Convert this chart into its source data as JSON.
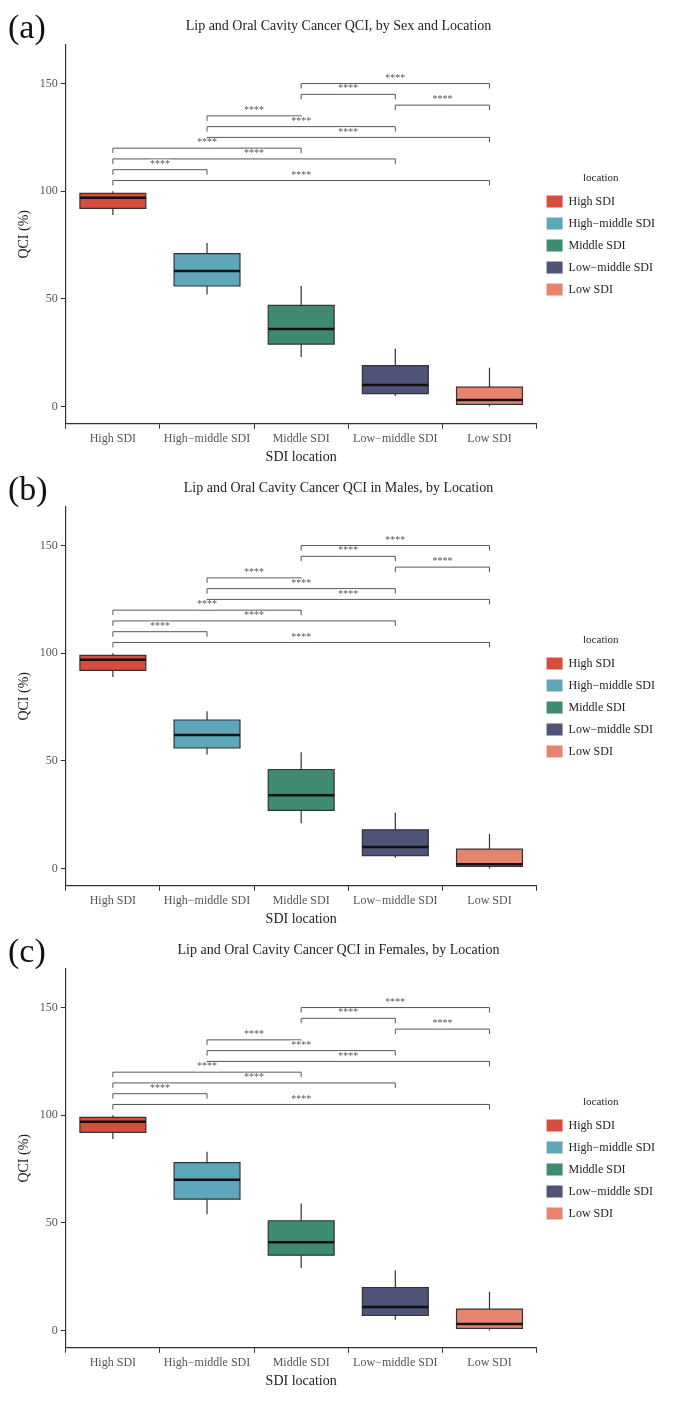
{
  "chart_data": [
    {
      "type": "box",
      "title": "Lip and Oral Cavity Cancer QCI, by Sex and Location",
      "xlabel": "SDI location",
      "ylabel": "QCI (%)",
      "legend_title": "location",
      "categories": [
        "High SDI",
        "High−middle SDI",
        "Middle SDI",
        "Low−middle SDI",
        "Low SDI"
      ],
      "series": [
        {
          "name": "High SDI",
          "color": "#d94b3a",
          "boxes": [
            {
              "low": 89,
              "q1": 92,
              "median": 97,
              "q3": 99,
              "high": 100
            },
            null,
            null,
            null,
            null
          ]
        },
        {
          "name": "High−middle SDI",
          "color": "#5ea7ba",
          "boxes": [
            null,
            {
              "low": 52,
              "q1": 56,
              "median": 63,
              "q3": 71,
              "high": 76
            },
            null,
            null,
            null
          ]
        },
        {
          "name": "Middle SDI",
          "color": "#3f8a72",
          "boxes": [
            null,
            null,
            {
              "low": 23,
              "q1": 29,
              "median": 36,
              "q3": 47,
              "high": 56
            },
            null,
            null
          ]
        },
        {
          "name": "Low−middle SDI",
          "color": "#4f5377",
          "boxes": [
            null,
            null,
            null,
            {
              "low": 5,
              "q1": 6,
              "median": 10,
              "q3": 19,
              "high": 27
            },
            null
          ]
        },
        {
          "name": "Low SDI",
          "color": "#e8846e",
          "boxes": [
            null,
            null,
            null,
            null,
            {
              "low": 0,
              "q1": 1,
              "median": 3,
              "q3": 9,
              "high": 18
            }
          ]
        }
      ],
      "ylim": [
        -8,
        168
      ],
      "yticks": [
        0,
        50,
        100,
        150
      ],
      "grid": false,
      "legend": "right",
      "annotations": [
        "(a)",
        "****",
        "****",
        "****",
        "****",
        "****",
        "****",
        "****",
        "****",
        "****",
        "****"
      ]
    },
    {
      "type": "box",
      "title": "Lip and Oral Cavity Cancer QCI in Males, by Location",
      "xlabel": "SDI location",
      "ylabel": "QCI (%)",
      "legend_title": "location",
      "categories": [
        "High SDI",
        "High−middle SDI",
        "Middle SDI",
        "Low−middle SDI",
        "Low SDI"
      ],
      "series": [
        {
          "name": "High SDI",
          "color": "#d94b3a",
          "boxes": [
            {
              "low": 89,
              "q1": 92,
              "median": 97,
              "q3": 99,
              "high": 100
            },
            null,
            null,
            null,
            null
          ]
        },
        {
          "name": "High−middle SDI",
          "color": "#5ea7ba",
          "boxes": [
            null,
            {
              "low": 53,
              "q1": 56,
              "median": 62,
              "q3": 69,
              "high": 73
            },
            null,
            null,
            null
          ]
        },
        {
          "name": "Middle SDI",
          "color": "#3f8a72",
          "boxes": [
            null,
            null,
            {
              "low": 21,
              "q1": 27,
              "median": 34,
              "q3": 46,
              "high": 54
            },
            null,
            null
          ]
        },
        {
          "name": "Low−middle SDI",
          "color": "#4f5377",
          "boxes": [
            null,
            null,
            null,
            {
              "low": 5,
              "q1": 6,
              "median": 10,
              "q3": 18,
              "high": 26
            },
            null
          ]
        },
        {
          "name": "Low SDI",
          "color": "#e8846e",
          "boxes": [
            null,
            null,
            null,
            null,
            {
              "low": 0,
              "q1": 1,
              "median": 2,
              "q3": 9,
              "high": 16
            }
          ]
        }
      ],
      "ylim": [
        -8,
        168
      ],
      "yticks": [
        0,
        50,
        100,
        150
      ],
      "grid": false,
      "legend": "right",
      "annotations": [
        "(b)",
        "****",
        "****",
        "****",
        "****",
        "****",
        "****",
        "****",
        "****",
        "****",
        "****"
      ]
    },
    {
      "type": "box",
      "title": "Lip and Oral Cavity Cancer QCI in Females, by Location",
      "xlabel": "SDI location",
      "ylabel": "QCI (%)",
      "legend_title": "location",
      "categories": [
        "High SDI",
        "High−middle SDI",
        "Middle SDI",
        "Low−middle SDI",
        "Low SDI"
      ],
      "series": [
        {
          "name": "High SDI",
          "color": "#d94b3a",
          "boxes": [
            {
              "low": 89,
              "q1": 92,
              "median": 97,
              "q3": 99,
              "high": 100
            },
            null,
            null,
            null,
            null
          ]
        },
        {
          "name": "High−middle SDI",
          "color": "#5ea7ba",
          "boxes": [
            null,
            {
              "low": 54,
              "q1": 61,
              "median": 70,
              "q3": 78,
              "high": 83
            },
            null,
            null,
            null
          ]
        },
        {
          "name": "Middle SDI",
          "color": "#3f8a72",
          "boxes": [
            null,
            null,
            {
              "low": 29,
              "q1": 35,
              "median": 41,
              "q3": 51,
              "high": 59
            },
            null,
            null
          ]
        },
        {
          "name": "Low−middle SDI",
          "color": "#4f5377",
          "boxes": [
            null,
            null,
            null,
            {
              "low": 5,
              "q1": 7,
              "median": 11,
              "q3": 20,
              "high": 28
            },
            null
          ]
        },
        {
          "name": "Low SDI",
          "color": "#e8846e",
          "boxes": [
            null,
            null,
            null,
            null,
            {
              "low": 0,
              "q1": 1,
              "median": 3,
              "q3": 10,
              "high": 18
            }
          ]
        }
      ],
      "ylim": [
        -8,
        168
      ],
      "yticks": [
        0,
        50,
        100,
        150
      ],
      "grid": false,
      "legend": "right",
      "annotations": [
        "(c)",
        "****",
        "****",
        "****",
        "****",
        "****",
        "****",
        "****",
        "****",
        "****",
        "****"
      ]
    }
  ]
}
